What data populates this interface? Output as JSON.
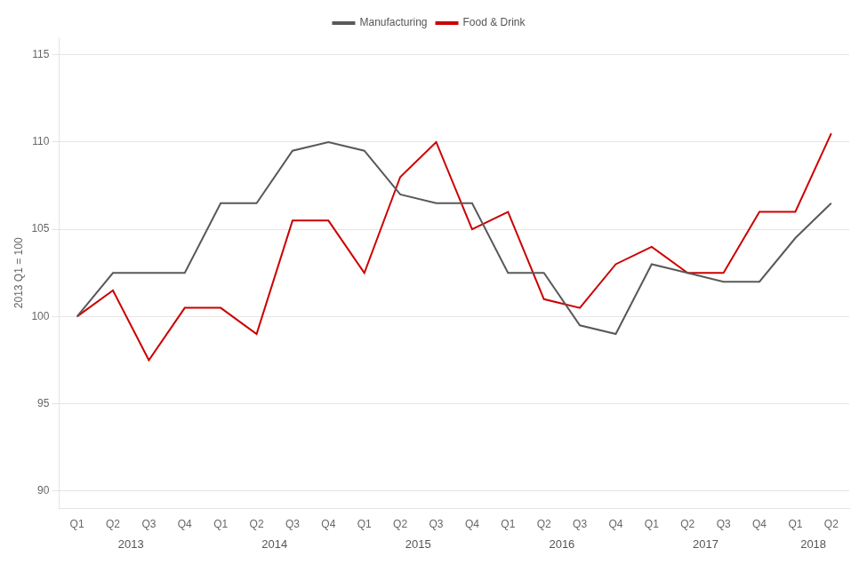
{
  "chart_data": {
    "type": "line",
    "categories": [
      "Q1",
      "Q2",
      "Q3",
      "Q4",
      "Q1",
      "Q2",
      "Q3",
      "Q4",
      "Q1",
      "Q2",
      "Q3",
      "Q4",
      "Q1",
      "Q2",
      "Q3",
      "Q4",
      "Q1",
      "Q2",
      "Q3",
      "Q4",
      "Q1",
      "Q2"
    ],
    "series": [
      {
        "name": "Manufacturing",
        "color": "#595959",
        "values": [
          100.0,
          102.5,
          102.5,
          102.5,
          106.5,
          106.5,
          109.5,
          110.0,
          109.5,
          107.0,
          106.5,
          106.5,
          102.5,
          102.5,
          99.5,
          99.0,
          103.0,
          102.5,
          102.0,
          102.0,
          104.5,
          106.5
        ]
      },
      {
        "name": "Food & Drink",
        "color": "#cc0000",
        "values": [
          100.0,
          101.5,
          97.5,
          100.5,
          100.5,
          99.0,
          105.5,
          105.5,
          102.5,
          108.0,
          110.0,
          105.0,
          106.0,
          101.0,
          100.5,
          103.0,
          104.0,
          102.5,
          102.5,
          106.0,
          106.0,
          110.5
        ]
      }
    ],
    "ylabel": "2013 Q1 = 100",
    "ylim": [
      89.0,
      116.0
    ],
    "yticks": [
      90,
      95,
      100,
      105,
      110,
      115
    ],
    "grid": true,
    "legend": "top",
    "annotations": [
      {
        "text": "2013",
        "x": 1.5
      },
      {
        "text": "2014",
        "x": 5.5
      },
      {
        "text": "2015",
        "x": 9.5
      },
      {
        "text": "2016",
        "x": 13.5
      },
      {
        "text": "2017",
        "x": 17.5
      },
      {
        "text": "2018",
        "x": 20.5
      }
    ]
  }
}
